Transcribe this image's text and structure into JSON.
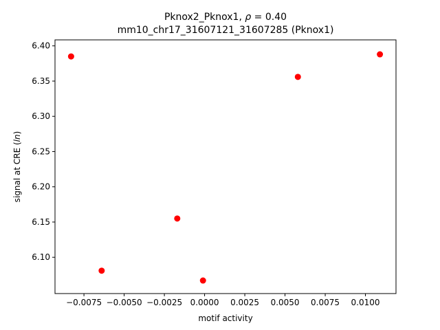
{
  "chart_data": {
    "type": "scatter",
    "title_line1_prefix": "Pknox2_Pknox1, ",
    "title_line1_rho": "ρ",
    "title_line1_suffix": " = 0.40",
    "title_line2": "mm10_chr17_31607121_31607285 (Pknox1)",
    "xlabel": "motif activity",
    "ylabel_prefix": "signal at CRE (",
    "ylabel_italic": "ln",
    "ylabel_suffix": ")",
    "xlim": [
      -0.0093,
      0.0119
    ],
    "ylim": [
      6.0485,
      6.4085
    ],
    "xticks": [
      -0.0075,
      -0.005,
      -0.0025,
      0.0,
      0.0025,
      0.005,
      0.0075,
      0.01
    ],
    "xtick_labels": [
      "−0.0075",
      "−0.0050",
      "−0.0025",
      "0.0000",
      "0.0025",
      "0.0050",
      "0.0075",
      "0.0100"
    ],
    "yticks": [
      6.1,
      6.15,
      6.2,
      6.25,
      6.3,
      6.35,
      6.4
    ],
    "ytick_labels": [
      "6.10",
      "6.15",
      "6.20",
      "6.25",
      "6.30",
      "6.35",
      "6.40"
    ],
    "grid": false,
    "marker_color": "#ff0000",
    "points": [
      {
        "x": -0.0083,
        "y": 6.385
      },
      {
        "x": -0.0064,
        "y": 6.081
      },
      {
        "x": -0.0017,
        "y": 6.155
      },
      {
        "x": -0.0001,
        "y": 6.067
      },
      {
        "x": 0.0058,
        "y": 6.356
      },
      {
        "x": 0.0109,
        "y": 6.388
      }
    ]
  }
}
